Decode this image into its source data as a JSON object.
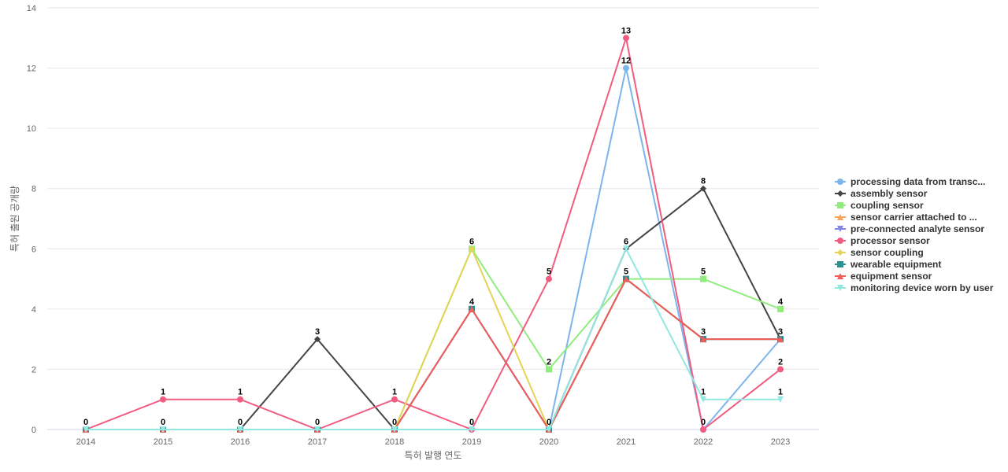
{
  "chart_data": {
    "type": "line",
    "title": "",
    "xlabel": "특허 발행 연도",
    "ylabel": "특허 출원 공개량",
    "x": [
      "2014",
      "2015",
      "2016",
      "2017",
      "2018",
      "2019",
      "2020",
      "2021",
      "2022",
      "2023"
    ],
    "ylim": [
      0,
      14
    ],
    "yticks": [
      0,
      2,
      4,
      6,
      8,
      10,
      12,
      14
    ],
    "grid": true,
    "legend_position": "right",
    "series": [
      {
        "name": "processing data from transc...",
        "color": "#7cb5ec",
        "marker": "circle",
        "values": [
          0,
          0,
          0,
          0,
          0,
          0,
          0,
          12,
          0,
          3
        ]
      },
      {
        "name": "assembly sensor",
        "color": "#434348",
        "marker": "diamond",
        "values": [
          0,
          0,
          0,
          3,
          0,
          0,
          0,
          6,
          8,
          3
        ]
      },
      {
        "name": "coupling sensor",
        "color": "#90ed7d",
        "marker": "square",
        "values": [
          0,
          0,
          0,
          0,
          0,
          6,
          2,
          5,
          5,
          4
        ]
      },
      {
        "name": "sensor carrier attached to ...",
        "color": "#f7a35c",
        "marker": "triangle",
        "values": [
          0,
          0,
          0,
          0,
          0,
          4,
          0,
          5,
          3,
          3
        ]
      },
      {
        "name": "pre-connected analyte sensor",
        "color": "#8085e9",
        "marker": "triangle-down",
        "values": [
          0,
          0,
          0,
          0,
          0,
          4,
          0,
          5,
          3,
          3
        ]
      },
      {
        "name": "processor sensor",
        "color": "#f15c80",
        "marker": "circle",
        "values": [
          0,
          1,
          1,
          0,
          1,
          0,
          5,
          13,
          0,
          2
        ]
      },
      {
        "name": "sensor coupling",
        "color": "#e4d354",
        "marker": "diamond",
        "values": [
          0,
          0,
          0,
          0,
          0,
          6,
          0,
          5,
          3,
          3
        ]
      },
      {
        "name": "wearable equipment",
        "color": "#2b908f",
        "marker": "square",
        "values": [
          0,
          0,
          0,
          0,
          0,
          4,
          0,
          5,
          3,
          3
        ]
      },
      {
        "name": "equipment sensor",
        "color": "#f45b5b",
        "marker": "triangle",
        "values": [
          0,
          0,
          0,
          0,
          0,
          4,
          0,
          5,
          3,
          3
        ]
      },
      {
        "name": "monitoring device worn by user",
        "color": "#91e8e1",
        "marker": "triangle-down",
        "values": [
          0,
          0,
          0,
          0,
          0,
          0,
          0,
          6,
          1,
          1
        ]
      }
    ],
    "data_labels": [
      {
        "x": "2014",
        "value": 0
      },
      {
        "x": "2015",
        "value": 1
      },
      {
        "x": "2015",
        "value": 0
      },
      {
        "x": "2016",
        "value": 1
      },
      {
        "x": "2016",
        "value": 0
      },
      {
        "x": "2017",
        "value": 3
      },
      {
        "x": "2017",
        "value": 0
      },
      {
        "x": "2018",
        "value": 1
      },
      {
        "x": "2018",
        "value": 0
      },
      {
        "x": "2019",
        "value": 6
      },
      {
        "x": "2019",
        "value": 4
      },
      {
        "x": "2019",
        "value": 0
      },
      {
        "x": "2020",
        "value": 5
      },
      {
        "x": "2020",
        "value": 2
      },
      {
        "x": "2020",
        "value": 0
      },
      {
        "x": "2021",
        "value": 13
      },
      {
        "x": "2021",
        "value": 12
      },
      {
        "x": "2021",
        "value": 6
      },
      {
        "x": "2021",
        "value": 5
      },
      {
        "x": "2022",
        "value": 8
      },
      {
        "x": "2022",
        "value": 5
      },
      {
        "x": "2022",
        "value": 3
      },
      {
        "x": "2022",
        "value": 1
      },
      {
        "x": "2022",
        "value": 0
      },
      {
        "x": "2023",
        "value": 4
      },
      {
        "x": "2023",
        "value": 3
      },
      {
        "x": "2023",
        "value": 2
      },
      {
        "x": "2023",
        "value": 1
      }
    ]
  }
}
